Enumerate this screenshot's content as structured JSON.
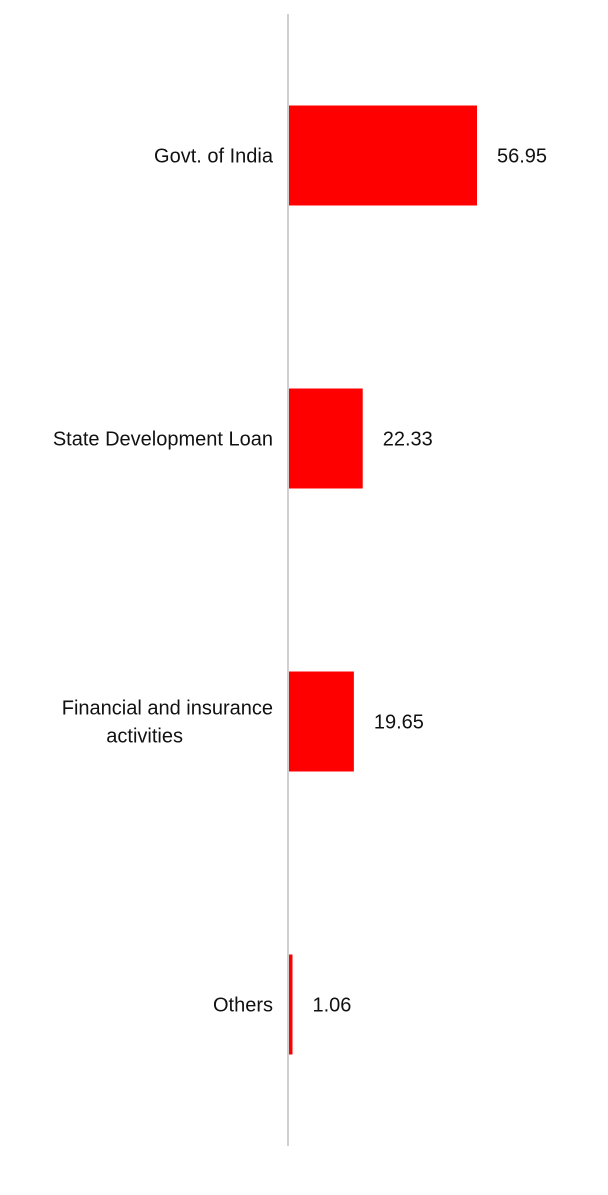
{
  "chart_data": {
    "type": "bar",
    "orientation": "horizontal",
    "categories": [
      [
        "Govt. of India"
      ],
      [
        "State Development Loan"
      ],
      [
        "Financial and insurance",
        "activities"
      ],
      [
        "Others"
      ]
    ],
    "values": [
      56.95,
      22.33,
      19.65,
      1.06
    ],
    "value_labels": [
      "56.95",
      "22.33",
      "19.65",
      "1.06"
    ],
    "xlim": [
      0,
      60
    ],
    "grid": false,
    "legend": "none",
    "colors": {
      "bar": "#ff0000",
      "axis": "#d0d0d0",
      "text": "#111111"
    }
  }
}
